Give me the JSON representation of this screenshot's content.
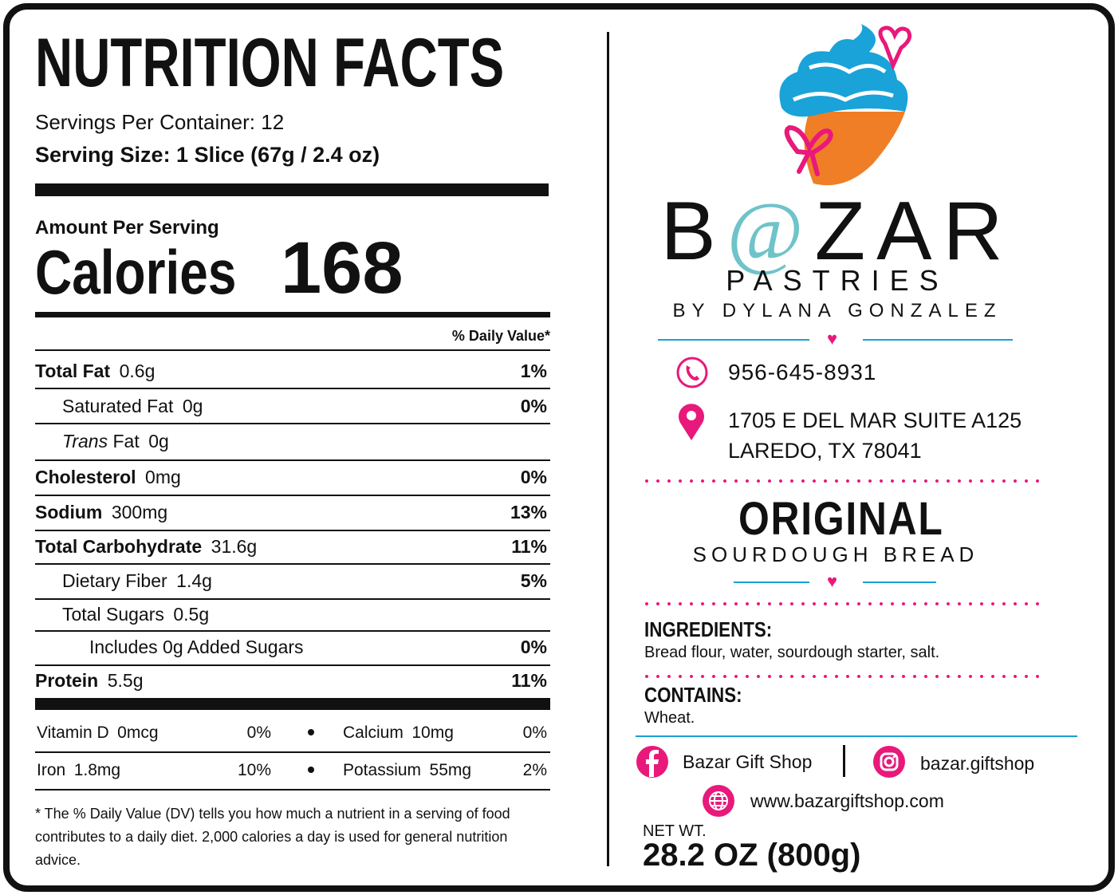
{
  "nutrition": {
    "title": "NUTRITION FACTS",
    "servings": "Servings Per Container: 12",
    "serving_size": "Serving Size: 1 Slice (67g / 2.4 oz)",
    "amount_per_serving": "Amount Per Serving",
    "calories_label": "Calories",
    "calories": "168",
    "dv_header": "% Daily Value*",
    "rows": [
      {
        "name": "Total Fat",
        "amount": "0.6g",
        "dv": "1%",
        "bold": true,
        "level": 0
      },
      {
        "name": "Saturated Fat",
        "amount": "0g",
        "dv": "0%",
        "bold": false,
        "level": 1
      },
      {
        "italic_prefix": "Trans",
        "name": "Fat",
        "amount": "0g",
        "bold": false,
        "level": 1
      },
      {
        "name": "Cholesterol",
        "amount": "0mg",
        "dv": "0%",
        "bold": true,
        "level": 0
      },
      {
        "name": "Sodium",
        "amount": "300mg",
        "dv": "13%",
        "bold": true,
        "level": 0
      },
      {
        "name": "Total Carbohydrate",
        "amount": "31.6g",
        "dv": "11%",
        "bold": true,
        "level": 0
      },
      {
        "name": "Dietary Fiber",
        "amount": "1.4g",
        "dv": "5%",
        "bold": false,
        "level": 1
      },
      {
        "name": "Total Sugars",
        "amount": "0.5g",
        "bold": false,
        "level": 1
      },
      {
        "name": "Includes 0g Added Sugars",
        "dv": "0%",
        "bold": false,
        "level": 2
      },
      {
        "name": "Protein",
        "amount": "5.5g",
        "dv": "11%",
        "bold": true,
        "level": 0
      }
    ],
    "micros": [
      {
        "name": "Vitamin D",
        "amount": "0mcg",
        "dv": "0%"
      },
      {
        "name": "Calcium",
        "amount": "10mg",
        "dv": "0%"
      },
      {
        "name": "Iron",
        "amount": "1.8mg",
        "dv": "10%"
      },
      {
        "name": "Potassium",
        "amount": "55mg",
        "dv": "2%"
      }
    ],
    "footnote": "* The % Daily Value (DV) tells you how much a nutrient in a serving of food contributes to a daily diet. 2,000 calories a day is used for general nutrition advice."
  },
  "brand": {
    "name_start": "B",
    "name_at": "@",
    "name_end": "ZAR",
    "pastries": "PASTRIES",
    "byline": "BY DYLANA GONZALEZ",
    "phone": "956-645-8931",
    "address": [
      "1705 E DEL MAR SUITE A125",
      "LAREDO, TX 78041"
    ]
  },
  "product": {
    "name": "ORIGINAL",
    "subtitle": "SOURDOUGH BREAD",
    "ingredients_heading": "INGREDIENTS:",
    "ingredients": "Bread flour, water, sourdough starter, salt.",
    "contains_heading": "CONTAINS:",
    "contains": "Wheat.",
    "facebook": "Bazar Gift Shop",
    "instagram": "bazar.giftshop",
    "website": "www.bazargiftshop.com",
    "net_wt_label": "NET WT.",
    "net_wt": "28.2 OZ (800g)"
  }
}
